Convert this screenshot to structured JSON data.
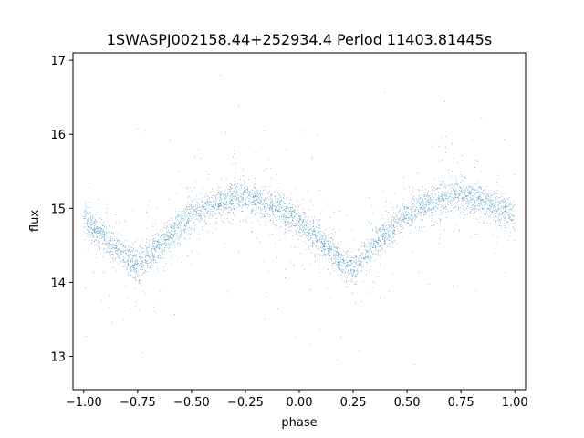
{
  "chart_data": {
    "type": "scatter",
    "title": "1SWASPJ002158.44+252934.4 Period 11403.81445s",
    "xlabel": "phase",
    "ylabel": "flux",
    "xlim": [
      -1.05,
      1.05
    ],
    "ylim": [
      12.55,
      17.1
    ],
    "xticks": [
      -1.0,
      -0.75,
      -0.5,
      -0.25,
      0.0,
      0.25,
      0.5,
      0.75,
      1.0
    ],
    "xtick_labels": [
      "−1.00",
      "−0.75",
      "−0.50",
      "−0.25",
      "0.00",
      "0.25",
      "0.50",
      "0.75",
      "1.00"
    ],
    "yticks": [
      13,
      14,
      15,
      16,
      17
    ],
    "ytick_labels": [
      "13",
      "14",
      "15",
      "16",
      "17"
    ],
    "grid": false,
    "series": [
      {
        "color": "#1f77b4",
        "marker_size": 0.8,
        "light_curve_shape": {
          "description_points_phase": [
            -1.0,
            -0.9,
            -0.8,
            -0.75,
            -0.7,
            -0.6,
            -0.5,
            -0.4,
            -0.3,
            -0.25,
            -0.2,
            -0.1,
            0.0,
            0.1,
            0.2,
            0.25,
            0.3,
            0.4,
            0.5,
            0.6,
            0.7,
            0.75,
            0.8,
            0.9,
            1.0
          ],
          "description_points_flux": [
            14.85,
            14.6,
            14.3,
            14.25,
            14.35,
            14.65,
            14.9,
            15.05,
            15.15,
            15.15,
            15.1,
            15.0,
            14.8,
            14.55,
            14.25,
            14.2,
            14.35,
            14.65,
            14.9,
            15.05,
            15.15,
            15.15,
            15.15,
            15.05,
            14.9
          ]
        }
      }
    ]
  }
}
